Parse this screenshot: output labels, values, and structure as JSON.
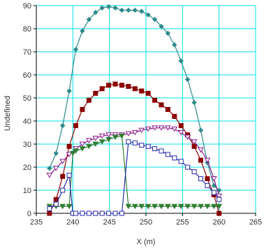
{
  "chart_data": {
    "type": "line",
    "xlabel": "X (m)",
    "ylabel": "Undefined",
    "xlim": [
      235,
      265
    ],
    "ylim": [
      0,
      90
    ],
    "xticks": [
      235,
      240,
      245,
      250,
      255,
      260,
      265
    ],
    "yticks": [
      0,
      10,
      20,
      30,
      40,
      50,
      60,
      70,
      80,
      90
    ],
    "x_tick_labels": [
      "235",
      "240",
      "245",
      "250",
      "255",
      "260",
      "265"
    ],
    "y_tick_labels": [
      "0",
      "10",
      "20",
      "30",
      "40",
      "50",
      "60",
      "70",
      "80",
      "90"
    ],
    "grid": true,
    "grid_color": "#00e0e8",
    "series": [
      {
        "color": "#2e8b8b",
        "marker": "diamond",
        "x": [
          236.8,
          237.7,
          238.6,
          239.5,
          240.4,
          241.3,
          242.2,
          243.1,
          244.0,
          244.9,
          245.8,
          246.7,
          247.6,
          248.5,
          249.4,
          250.3,
          251.2,
          252.1,
          253.0,
          253.9,
          254.8,
          255.7,
          256.6,
          257.5,
          258.4,
          259.3,
          260.0
        ],
        "y": [
          19.5,
          26,
          38,
          53,
          71,
          79,
          84,
          87,
          89,
          89.5,
          89,
          88,
          88,
          88,
          87.5,
          86,
          84,
          81,
          78,
          73,
          66,
          58,
          48,
          36,
          22,
          12,
          10
        ]
      },
      {
        "color": "#8b0000",
        "marker": "square-filled",
        "x": [
          236.8,
          237.7,
          238.6,
          239.5,
          240.4,
          241.3,
          242.2,
          243.1,
          244.0,
          244.9,
          245.8,
          246.7,
          247.6,
          248.5,
          249.4,
          250.3,
          251.2,
          252.1,
          253.0,
          253.9,
          254.8,
          255.7,
          256.6,
          257.5,
          258.4,
          259.3,
          260.0
        ],
        "y": [
          0,
          6,
          16,
          29,
          38,
          45,
          49,
          52,
          54,
          55.5,
          56,
          55.5,
          55,
          54,
          53,
          52,
          49,
          47,
          45,
          42,
          38,
          34,
          29,
          23,
          15,
          8,
          0
        ]
      },
      {
        "color": "#8b1a8b",
        "marker": "triangle-down-open",
        "x": [
          236.8,
          237.7,
          238.6,
          239.5,
          240.4,
          241.3,
          242.2,
          243.1,
          244.0,
          244.9,
          245.8,
          246.7,
          247.6,
          248.5,
          249.4,
          250.3,
          251.2,
          252.1,
          253.0,
          253.9,
          254.8,
          255.7,
          256.6,
          257.5,
          258.4,
          259.3,
          260.0
        ],
        "y": [
          16.5,
          19.5,
          22.5,
          25.5,
          28,
          30,
          31.5,
          32.5,
          33.5,
          34,
          34,
          34,
          34.5,
          35,
          36,
          36.5,
          37,
          37,
          37,
          36.5,
          35,
          33,
          31,
          27.5,
          23,
          15,
          7.5
        ]
      },
      {
        "color": "#2e7d32",
        "marker": "triangle-down-filled",
        "x": [
          236.8,
          237.7,
          238.6,
          239.5,
          240.0,
          240.4,
          241.3,
          242.2,
          243.1,
          244.0,
          244.9,
          245.8,
          246.7,
          247.6,
          248.5,
          249.4,
          250.3,
          251.2,
          252.1,
          253.0,
          253.9,
          254.8,
          255.7,
          256.6,
          257.5,
          258.4,
          259.3,
          260.0
        ],
        "y": [
          3,
          3,
          3,
          3,
          26,
          27,
          28,
          29,
          30,
          31,
          32,
          33,
          33.5,
          3,
          3,
          3,
          3,
          3,
          3,
          3,
          3,
          3,
          3,
          3,
          3,
          3,
          3,
          3
        ]
      },
      {
        "color": "#2a2aa8",
        "marker": "square-open",
        "x": [
          236.8,
          237.7,
          238.6,
          239.5,
          240.0,
          240.4,
          241.3,
          242.2,
          243.1,
          244.0,
          244.9,
          245.8,
          246.7,
          247.6,
          248.5,
          249.4,
          250.3,
          251.2,
          252.1,
          253.0,
          253.9,
          254.8,
          255.7,
          256.6,
          257.5,
          258.4,
          259.3,
          260.0
        ],
        "y": [
          2,
          4,
          10,
          16.5,
          0,
          0,
          0,
          0,
          0,
          0,
          0,
          0,
          0,
          31,
          30.5,
          29.5,
          29,
          28,
          27,
          25.5,
          24,
          22.5,
          20,
          18,
          15,
          12,
          9,
          6
        ]
      }
    ]
  }
}
